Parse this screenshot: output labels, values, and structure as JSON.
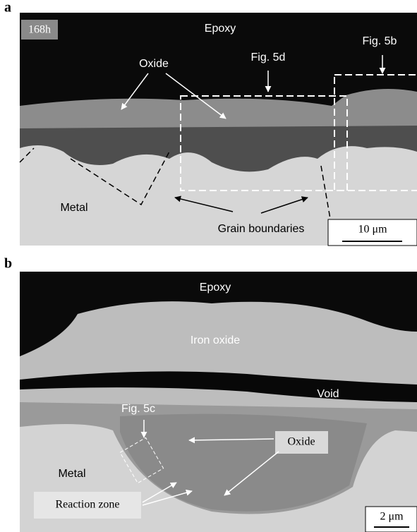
{
  "panels": [
    {
      "label": "a",
      "tag": "168h",
      "annotations": [
        "Epoxy",
        "Oxide",
        "Fig. 5d",
        "Fig. 5b",
        "Metal",
        "Grain boundaries"
      ],
      "scale_bar": "10 μm"
    },
    {
      "label": "b",
      "annotations": [
        "Epoxy",
        "Iron oxide",
        "Void",
        "Fig. 5c",
        "Oxide",
        "Metal",
        "Reaction zone"
      ],
      "scale_bar": "2 μm"
    }
  ]
}
